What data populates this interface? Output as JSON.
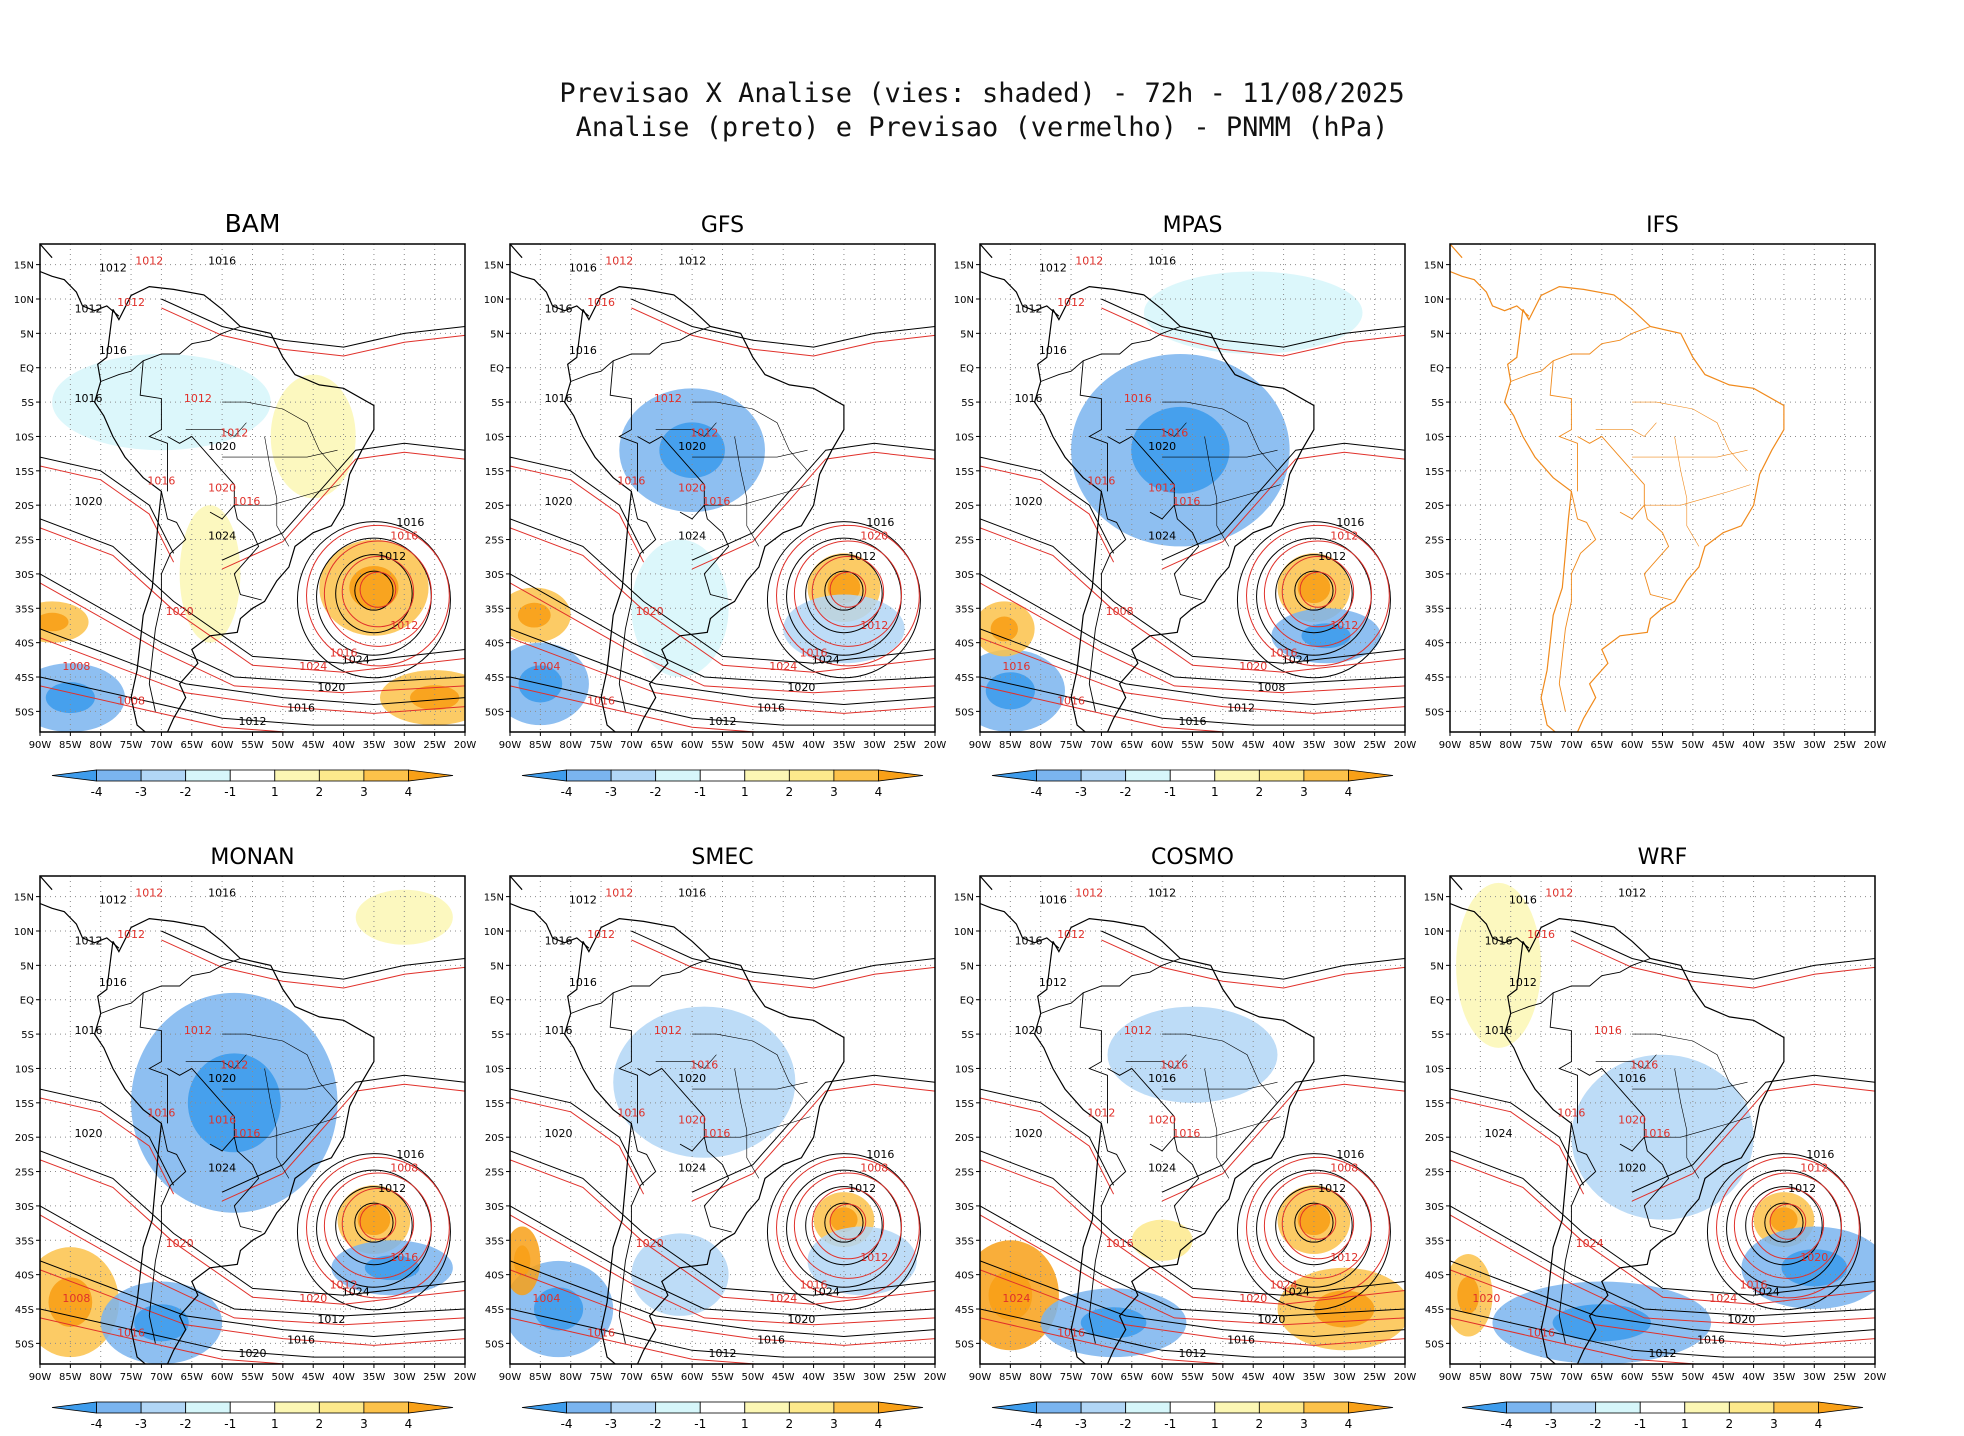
{
  "header": {
    "title_line1": "Previsao X Analise (vies: shaded) - 72h - 11/08/2025",
    "title_line2": "Analise (preto) e Previsao (vermelho) - PNMM (hPa)"
  },
  "colors": {
    "neg4": "#3e9cec",
    "neg3": "#7ab4ef",
    "neg2": "#b1d6f6",
    "neg1": "#d6f6fa",
    "pos1": "#fcf7b4",
    "pos2": "#fde98c",
    "pos3": "#fcc24a",
    "pos4": "#f8a017",
    "analysis_contour": "#000000",
    "forecast_contour": "#e0302a",
    "ifs_coast": "#f08a1c"
  },
  "axes": {
    "lon_ticks": [
      "90W",
      "85W",
      "80W",
      "75W",
      "70W",
      "65W",
      "60W",
      "55W",
      "50W",
      "45W",
      "40W",
      "35W",
      "30W",
      "25W",
      "20W"
    ],
    "lat_ticks": [
      "15N",
      "10N",
      "5N",
      "EQ",
      "5S",
      "10S",
      "15S",
      "20S",
      "25S",
      "30S",
      "35S",
      "40S",
      "45S",
      "50S"
    ],
    "lon_range": [
      -90,
      -20
    ],
    "lat_range": [
      -53,
      18
    ]
  },
  "colorbar": {
    "labels": [
      "-4",
      "-3",
      "-2",
      "-1",
      "1",
      "2",
      "3",
      "4"
    ]
  },
  "chart_data": [
    {
      "type": "heatmap",
      "title": "BAM",
      "has_data": true,
      "isobars_analysis": [
        "1016",
        "1012",
        "1012",
        "1016",
        "1016",
        "1020",
        "1020",
        "1024",
        "1016",
        "1012",
        "1024",
        "1020",
        "1016",
        "1012"
      ],
      "isobars_forecast": [
        "1012",
        "1012",
        "1012",
        "1012",
        "1016",
        "1016",
        "1020",
        "1020",
        "1016",
        "1012",
        "1024",
        "1008",
        "1008",
        "1016"
      ],
      "bias_blobs": [
        {
          "lon": -35,
          "lat": -32,
          "rx": 9,
          "ry": 7,
          "bias": 3
        },
        {
          "lon": -45,
          "lat": -10,
          "rx": 7,
          "ry": 9,
          "bias": 1
        },
        {
          "lon": -62,
          "lat": -30,
          "rx": 5,
          "ry": 10,
          "bias": 1
        },
        {
          "lon": -85,
          "lat": -48,
          "rx": 9,
          "ry": 5,
          "bias": -3
        },
        {
          "lon": -25,
          "lat": -48,
          "rx": 9,
          "ry": 4,
          "bias": 3
        },
        {
          "lon": -70,
          "lat": -5,
          "rx": 18,
          "ry": 7,
          "bias": -1
        },
        {
          "lon": -88,
          "lat": -37,
          "rx": 6,
          "ry": 3,
          "bias": 3
        }
      ]
    },
    {
      "type": "heatmap",
      "title": "GFS",
      "has_data": true,
      "isobars_analysis": [
        "1012",
        "1016",
        "1016",
        "1016",
        "1016",
        "1020",
        "1020",
        "1024",
        "1016",
        "1012",
        "1024",
        "1020",
        "1016",
        "1012"
      ],
      "isobars_forecast": [
        "1012",
        "1016",
        "1012",
        "1012",
        "1016",
        "1016",
        "1020",
        "1020",
        "1016",
        "1012",
        "1024",
        "1004",
        "1016",
        "1020"
      ],
      "bias_blobs": [
        {
          "lon": -35,
          "lat": -32,
          "rx": 6,
          "ry": 5,
          "bias": 3
        },
        {
          "lon": -60,
          "lat": -12,
          "rx": 12,
          "ry": 9,
          "bias": -3
        },
        {
          "lon": -35,
          "lat": -38,
          "rx": 10,
          "ry": 5,
          "bias": -2
        },
        {
          "lon": -85,
          "lat": -46,
          "rx": 8,
          "ry": 6,
          "bias": -3
        },
        {
          "lon": -86,
          "lat": -36,
          "rx": 6,
          "ry": 4,
          "bias": 3
        },
        {
          "lon": -62,
          "lat": -35,
          "rx": 8,
          "ry": 10,
          "bias": -1
        }
      ]
    },
    {
      "type": "heatmap",
      "title": "MPAS",
      "has_data": true,
      "isobars_analysis": [
        "1016",
        "1012",
        "1012",
        "1016",
        "1016",
        "1020",
        "1020",
        "1024",
        "1016",
        "1012",
        "1024",
        "1008",
        "1012",
        "1016"
      ],
      "isobars_forecast": [
        "1012",
        "1012",
        "1016",
        "1016",
        "1016",
        "1016",
        "1012",
        "1008",
        "1016",
        "1012",
        "1020",
        "1016",
        "1016",
        "1012"
      ],
      "bias_blobs": [
        {
          "lon": -57,
          "lat": -12,
          "rx": 18,
          "ry": 14,
          "bias": -3
        },
        {
          "lon": -35,
          "lat": -32,
          "rx": 6,
          "ry": 5,
          "bias": 3
        },
        {
          "lon": -33,
          "lat": -39,
          "rx": 9,
          "ry": 4,
          "bias": -3
        },
        {
          "lon": -85,
          "lat": -47,
          "rx": 9,
          "ry": 6,
          "bias": -3
        },
        {
          "lon": -86,
          "lat": -38,
          "rx": 5,
          "ry": 4,
          "bias": 3
        },
        {
          "lon": -45,
          "lat": 8,
          "rx": 18,
          "ry": 6,
          "bias": -1
        }
      ]
    },
    {
      "type": "heatmap",
      "title": "IFS",
      "has_data": false,
      "isobars_analysis": [],
      "isobars_forecast": [],
      "bias_blobs": []
    },
    {
      "type": "heatmap",
      "title": "MONAN",
      "has_data": true,
      "isobars_analysis": [
        "1016",
        "1012",
        "1012",
        "1016",
        "1016",
        "1020",
        "1020",
        "1024",
        "1016",
        "1012",
        "1024",
        "1012",
        "1016",
        "1020"
      ],
      "isobars_forecast": [
        "1012",
        "1012",
        "1012",
        "1012",
        "1016",
        "1016",
        "1016",
        "1020",
        "1012",
        "1016",
        "1020",
        "1008",
        "1016",
        "1008"
      ],
      "bias_blobs": [
        {
          "lon": -58,
          "lat": -15,
          "rx": 17,
          "ry": 16,
          "bias": -3
        },
        {
          "lon": -35,
          "lat": -32,
          "rx": 6,
          "ry": 5,
          "bias": 3
        },
        {
          "lon": -32,
          "lat": -39,
          "rx": 10,
          "ry": 4,
          "bias": -3
        },
        {
          "lon": -85,
          "lat": -44,
          "rx": 8,
          "ry": 8,
          "bias": 3
        },
        {
          "lon": -70,
          "lat": -47,
          "rx": 10,
          "ry": 6,
          "bias": -3
        },
        {
          "lon": -30,
          "lat": 12,
          "rx": 8,
          "ry": 4,
          "bias": 1
        }
      ]
    },
    {
      "type": "heatmap",
      "title": "SMEC",
      "has_data": true,
      "isobars_analysis": [
        "1016",
        "1012",
        "1016",
        "1016",
        "1016",
        "1020",
        "1020",
        "1024",
        "1016",
        "1012",
        "1024",
        "1020",
        "1016",
        "1012"
      ],
      "isobars_forecast": [
        "1012",
        "1012",
        "1012",
        "1016",
        "1016",
        "1016",
        "1020",
        "1020",
        "1016",
        "1012",
        "1024",
        "1004",
        "1016",
        "1008"
      ],
      "bias_blobs": [
        {
          "lon": -58,
          "lat": -12,
          "rx": 15,
          "ry": 11,
          "bias": -2
        },
        {
          "lon": -35,
          "lat": -32,
          "rx": 5,
          "ry": 4,
          "bias": 3
        },
        {
          "lon": -32,
          "lat": -38,
          "rx": 9,
          "ry": 5,
          "bias": -2
        },
        {
          "lon": -82,
          "lat": -45,
          "rx": 9,
          "ry": 7,
          "bias": -3
        },
        {
          "lon": -88,
          "lat": -38,
          "rx": 3,
          "ry": 5,
          "bias": 4
        },
        {
          "lon": -62,
          "lat": -40,
          "rx": 8,
          "ry": 6,
          "bias": -2
        }
      ]
    },
    {
      "type": "heatmap",
      "title": "COSMO",
      "has_data": true,
      "isobars_analysis": [
        "1012",
        "1016",
        "1016",
        "1012",
        "1020",
        "1016",
        "1020",
        "1024",
        "1016",
        "1012",
        "1024",
        "1020",
        "1016",
        "1012"
      ],
      "isobars_forecast": [
        "1012",
        "1012",
        "1012",
        "1016",
        "1012",
        "1016",
        "1020",
        "1016",
        "1024",
        "1012",
        "1020",
        "1024",
        "1016",
        "1008"
      ],
      "bias_blobs": [
        {
          "lon": -35,
          "lat": -32,
          "rx": 6,
          "ry": 5,
          "bias": 3
        },
        {
          "lon": -55,
          "lat": -8,
          "rx": 14,
          "ry": 7,
          "bias": -2
        },
        {
          "lon": -85,
          "lat": -43,
          "rx": 8,
          "ry": 8,
          "bias": 4
        },
        {
          "lon": -30,
          "lat": -45,
          "rx": 11,
          "ry": 6,
          "bias": 3
        },
        {
          "lon": -68,
          "lat": -47,
          "rx": 12,
          "ry": 5,
          "bias": -3
        },
        {
          "lon": -60,
          "lat": -35,
          "rx": 5,
          "ry": 3,
          "bias": 2
        }
      ]
    },
    {
      "type": "heatmap",
      "title": "WRF",
      "has_data": true,
      "isobars_analysis": [
        "1012",
        "1016",
        "1016",
        "1012",
        "1016",
        "1016",
        "1024",
        "1020",
        "1016",
        "1012",
        "1024",
        "1020",
        "1016",
        "1012"
      ],
      "isobars_forecast": [
        "1012",
        "1016",
        "1016",
        "1016",
        "1016",
        "1016",
        "1020",
        "1024",
        "1016",
        "1020",
        "1024",
        "1020",
        "1016",
        "1012"
      ],
      "bias_blobs": [
        {
          "lon": -55,
          "lat": -20,
          "rx": 15,
          "ry": 12,
          "bias": -2
        },
        {
          "lon": -35,
          "lat": -32,
          "rx": 5,
          "ry": 4,
          "bias": 3
        },
        {
          "lon": -30,
          "lat": -39,
          "rx": 12,
          "ry": 6,
          "bias": -3
        },
        {
          "lon": -65,
          "lat": -47,
          "rx": 18,
          "ry": 6,
          "bias": -3
        },
        {
          "lon": -87,
          "lat": -43,
          "rx": 4,
          "ry": 6,
          "bias": 3
        },
        {
          "lon": -82,
          "lat": 5,
          "rx": 7,
          "ry": 12,
          "bias": 1
        }
      ]
    }
  ]
}
